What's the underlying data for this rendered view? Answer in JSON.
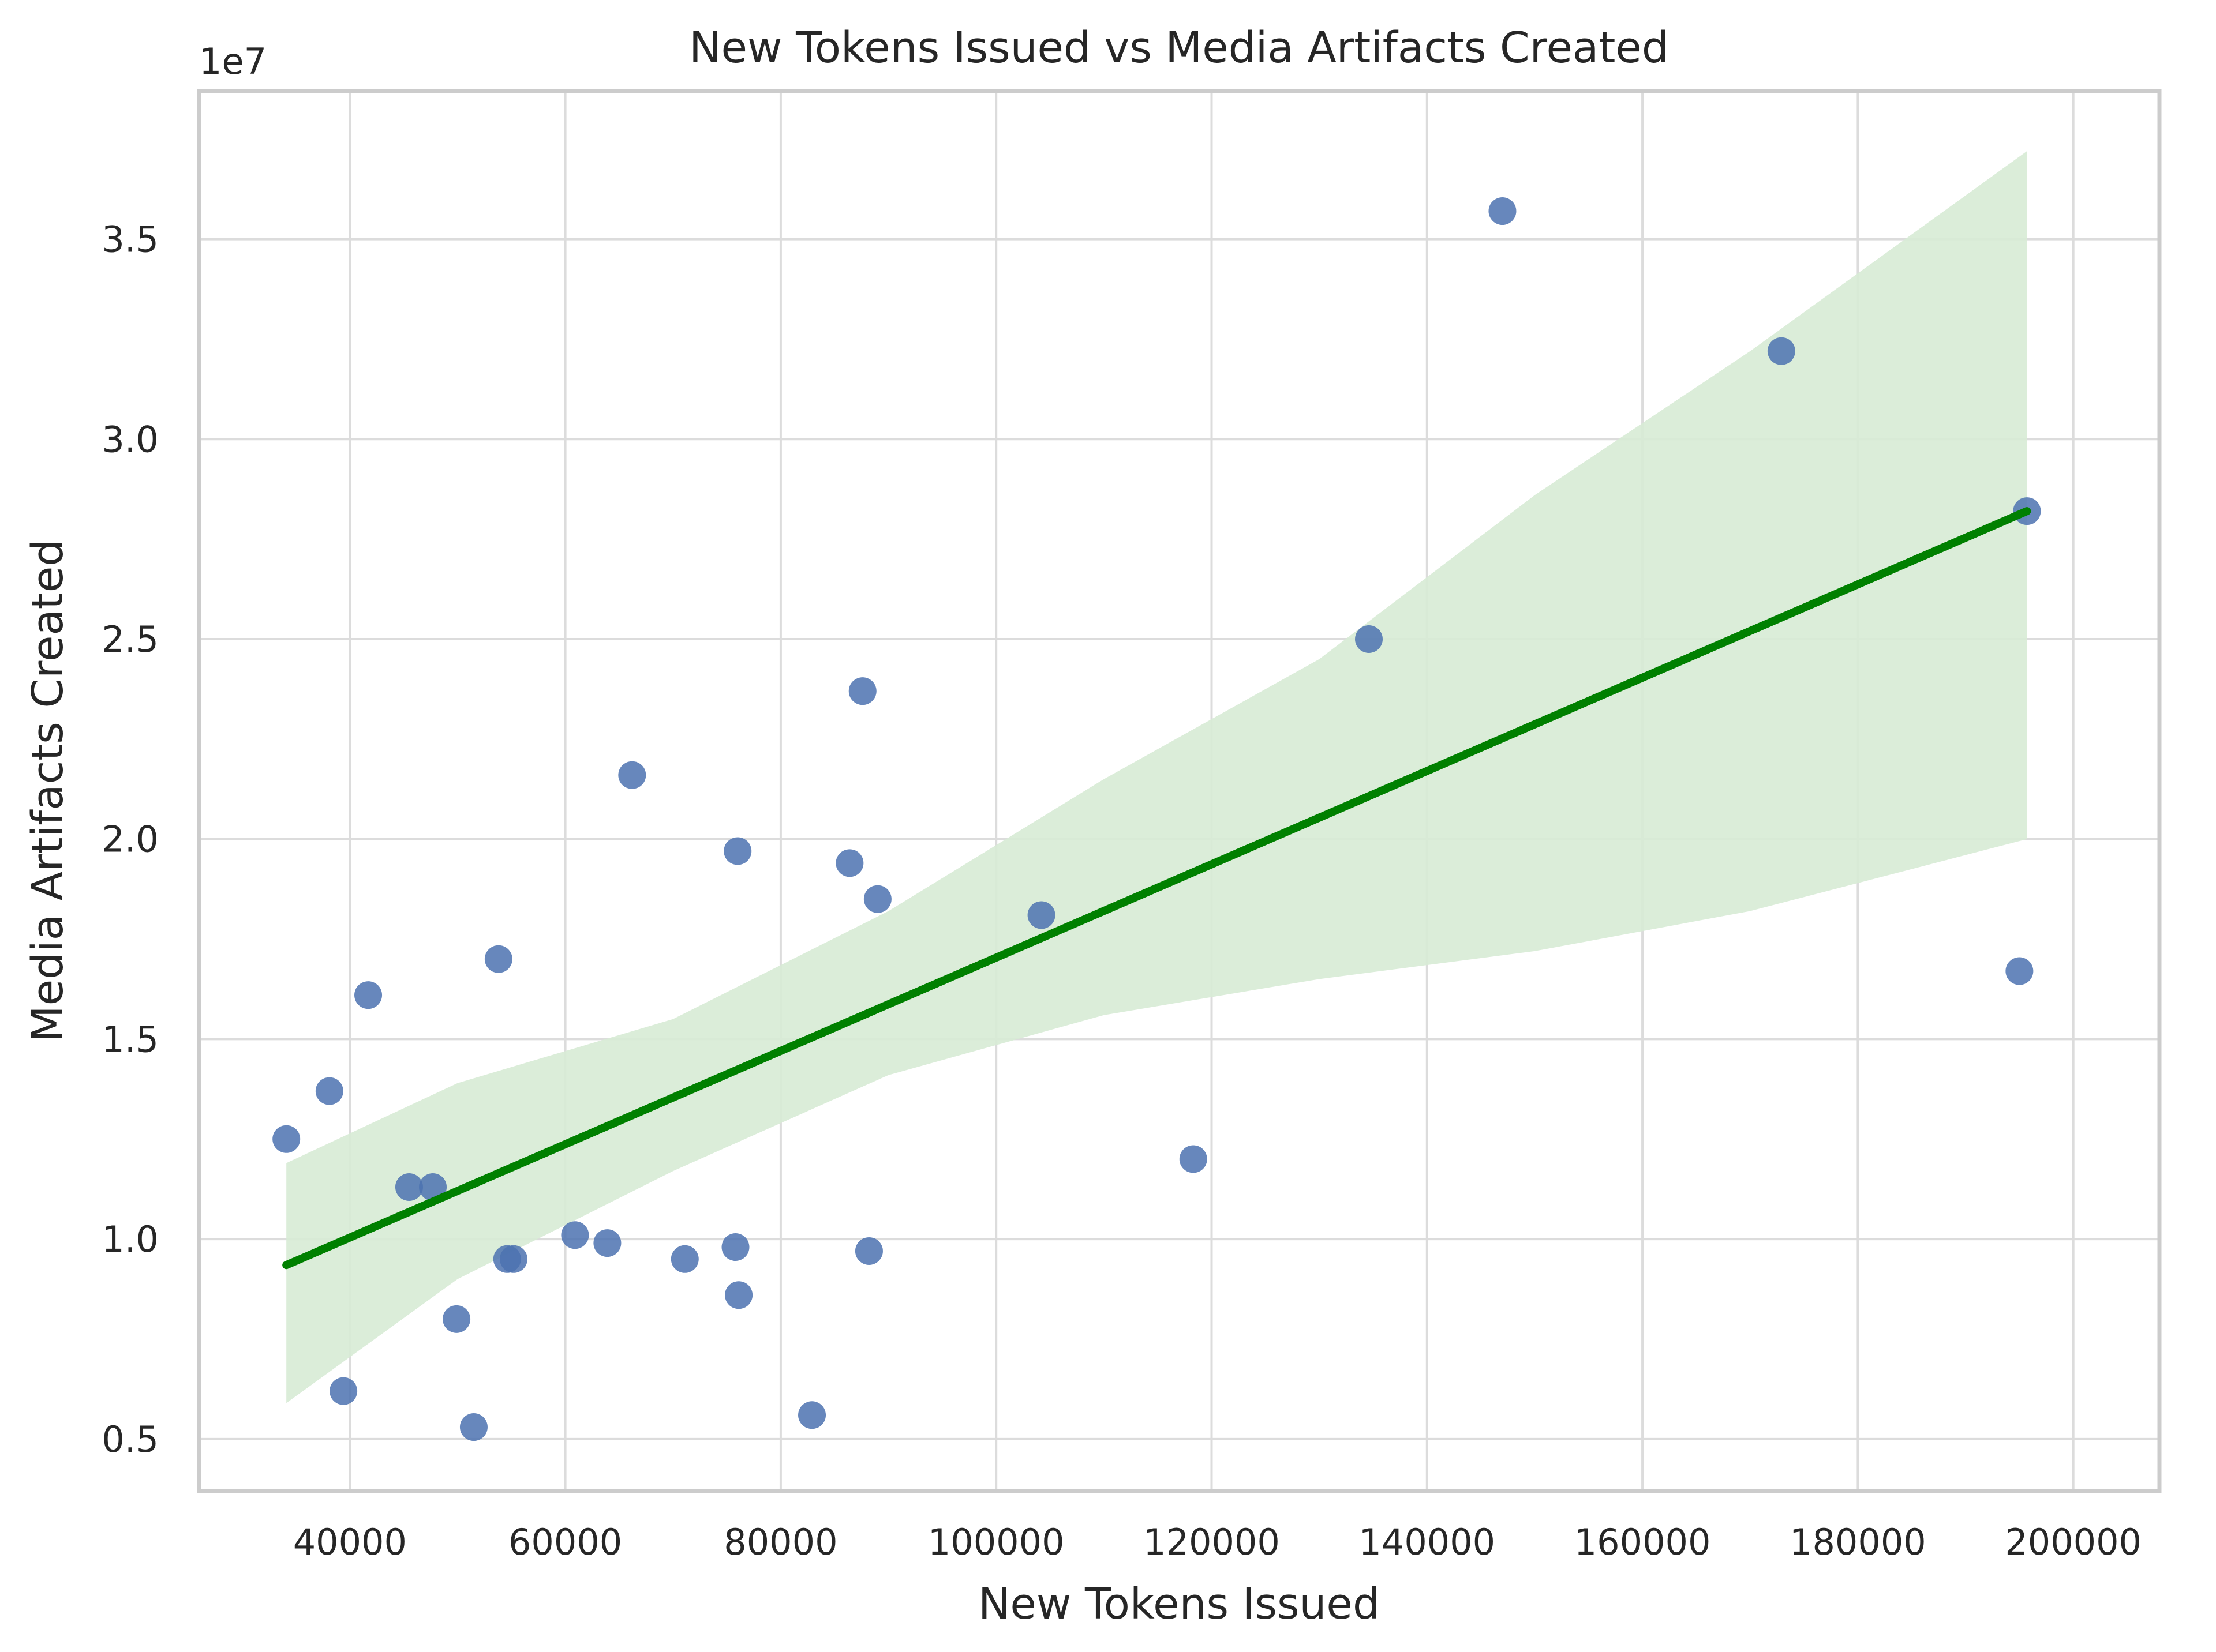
{
  "chart_data": {
    "type": "scatter",
    "title": "New Tokens Issued vs Media Artifacts Created",
    "xlabel": "New Tokens Issued",
    "ylabel": "Media Artifacts Created",
    "y_offset_label": "1e7",
    "xlim": [
      26000,
      208000
    ],
    "ylim": [
      3700000.0,
      38700000.0
    ],
    "x_ticks": [
      40000,
      60000,
      80000,
      100000,
      120000,
      140000,
      160000,
      180000,
      200000
    ],
    "x_tick_labels": [
      "40000",
      "60000",
      "80000",
      "100000",
      "120000",
      "140000",
      "160000",
      "180000",
      "200000"
    ],
    "y_ticks": [
      5000000,
      10000000,
      15000000,
      20000000,
      25000000,
      30000000,
      35000000
    ],
    "y_tick_labels": [
      "0.5",
      "1.0",
      "1.5",
      "2.0",
      "2.5",
      "3.0",
      "3.5"
    ],
    "grid": true,
    "legend": null,
    "series": [
      {
        "name": "points",
        "kind": "scatter",
        "color": "#4c72b0",
        "x": [
          34100,
          38100,
          39400,
          41700,
          45500,
          47700,
          49900,
          51500,
          53800,
          54600,
          55200,
          60900,
          63900,
          66200,
          71100,
          75800,
          76000,
          76100,
          82900,
          86400,
          87600,
          88200,
          89000,
          104200,
          118300,
          134600,
          147000,
          172900,
          195000,
          195700
        ],
        "y": [
          12500000,
          13700000,
          6200000,
          16100000,
          11300000,
          11300000,
          8000000,
          5300000,
          17000000,
          9500000,
          9500000,
          10100000,
          9900000,
          21600000,
          9500000,
          9800000,
          19700000,
          8600000,
          5600000,
          19400000,
          23700000,
          9700000,
          18500000,
          18100000,
          12000000,
          25000000,
          35700000,
          32200000,
          16700000,
          28200000
        ]
      },
      {
        "name": "regression",
        "kind": "line",
        "color": "#008000",
        "x": [
          34100,
          195700
        ],
        "y": [
          9350000,
          28200000
        ]
      },
      {
        "name": "confidence-interval",
        "kind": "band",
        "color": "#2ca02c",
        "opacity": 0.18,
        "x": [
          34100,
          50000,
          70000,
          90000,
          110000,
          130000,
          150000,
          170000,
          195700
        ],
        "upper": [
          11900000,
          13900000,
          15500000,
          18200000,
          21500000,
          24500000,
          28600000,
          32200000,
          37200000
        ],
        "lower": [
          5900000,
          9000000,
          11700000,
          14100000,
          15600000,
          16500000,
          17200000,
          18200000,
          20000000
        ]
      }
    ]
  },
  "colors": {
    "background": "#ffffff",
    "grid": "#dcdcdc",
    "frame": "#cccccc",
    "point": "#4c72b0",
    "line": "#008000",
    "band": "#d7ebd5"
  }
}
